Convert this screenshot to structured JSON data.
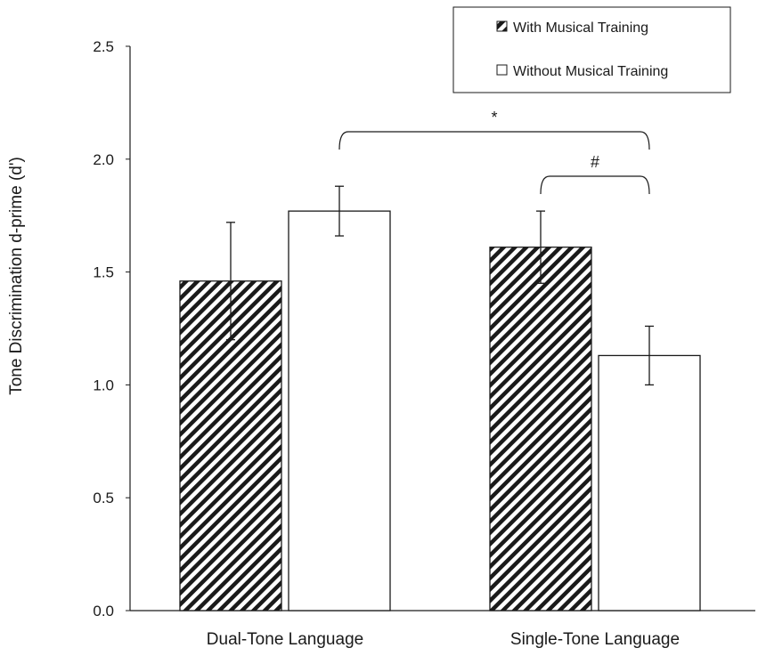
{
  "chart_data": {
    "type": "bar",
    "categories": [
      "Dual-Tone Language",
      "Single-Tone Language"
    ],
    "series": [
      {
        "name": "With Musical Training",
        "pattern": "hatched",
        "values": [
          1.46,
          1.61
        ],
        "error_low": [
          1.2,
          1.45
        ],
        "error_high": [
          1.72,
          1.77
        ]
      },
      {
        "name": "Without Musical Training",
        "pattern": "open",
        "values": [
          1.77,
          1.13
        ],
        "error_low": [
          1.66,
          1.0
        ],
        "error_high": [
          1.88,
          1.26
        ]
      }
    ],
    "ylabel": "Tone Discrimination d-prime (d')",
    "xlabel": "",
    "ylim": [
      0,
      2.5
    ],
    "yticks": [
      "0.0",
      "0.5",
      "1.0",
      "1.5",
      "2.0",
      "2.5"
    ],
    "grid": false,
    "legend_position": "top-right",
    "annotations": [
      {
        "symbol": "*",
        "from": {
          "category": 0,
          "series": 1
        },
        "to": {
          "category": 1,
          "series": 1
        }
      },
      {
        "symbol": "#",
        "from": {
          "category": 1,
          "series": 0
        },
        "to": {
          "category": 1,
          "series": 1
        }
      }
    ],
    "colors": {
      "bar_stroke": "#1a1a1a",
      "fill": "#ffffff"
    }
  }
}
